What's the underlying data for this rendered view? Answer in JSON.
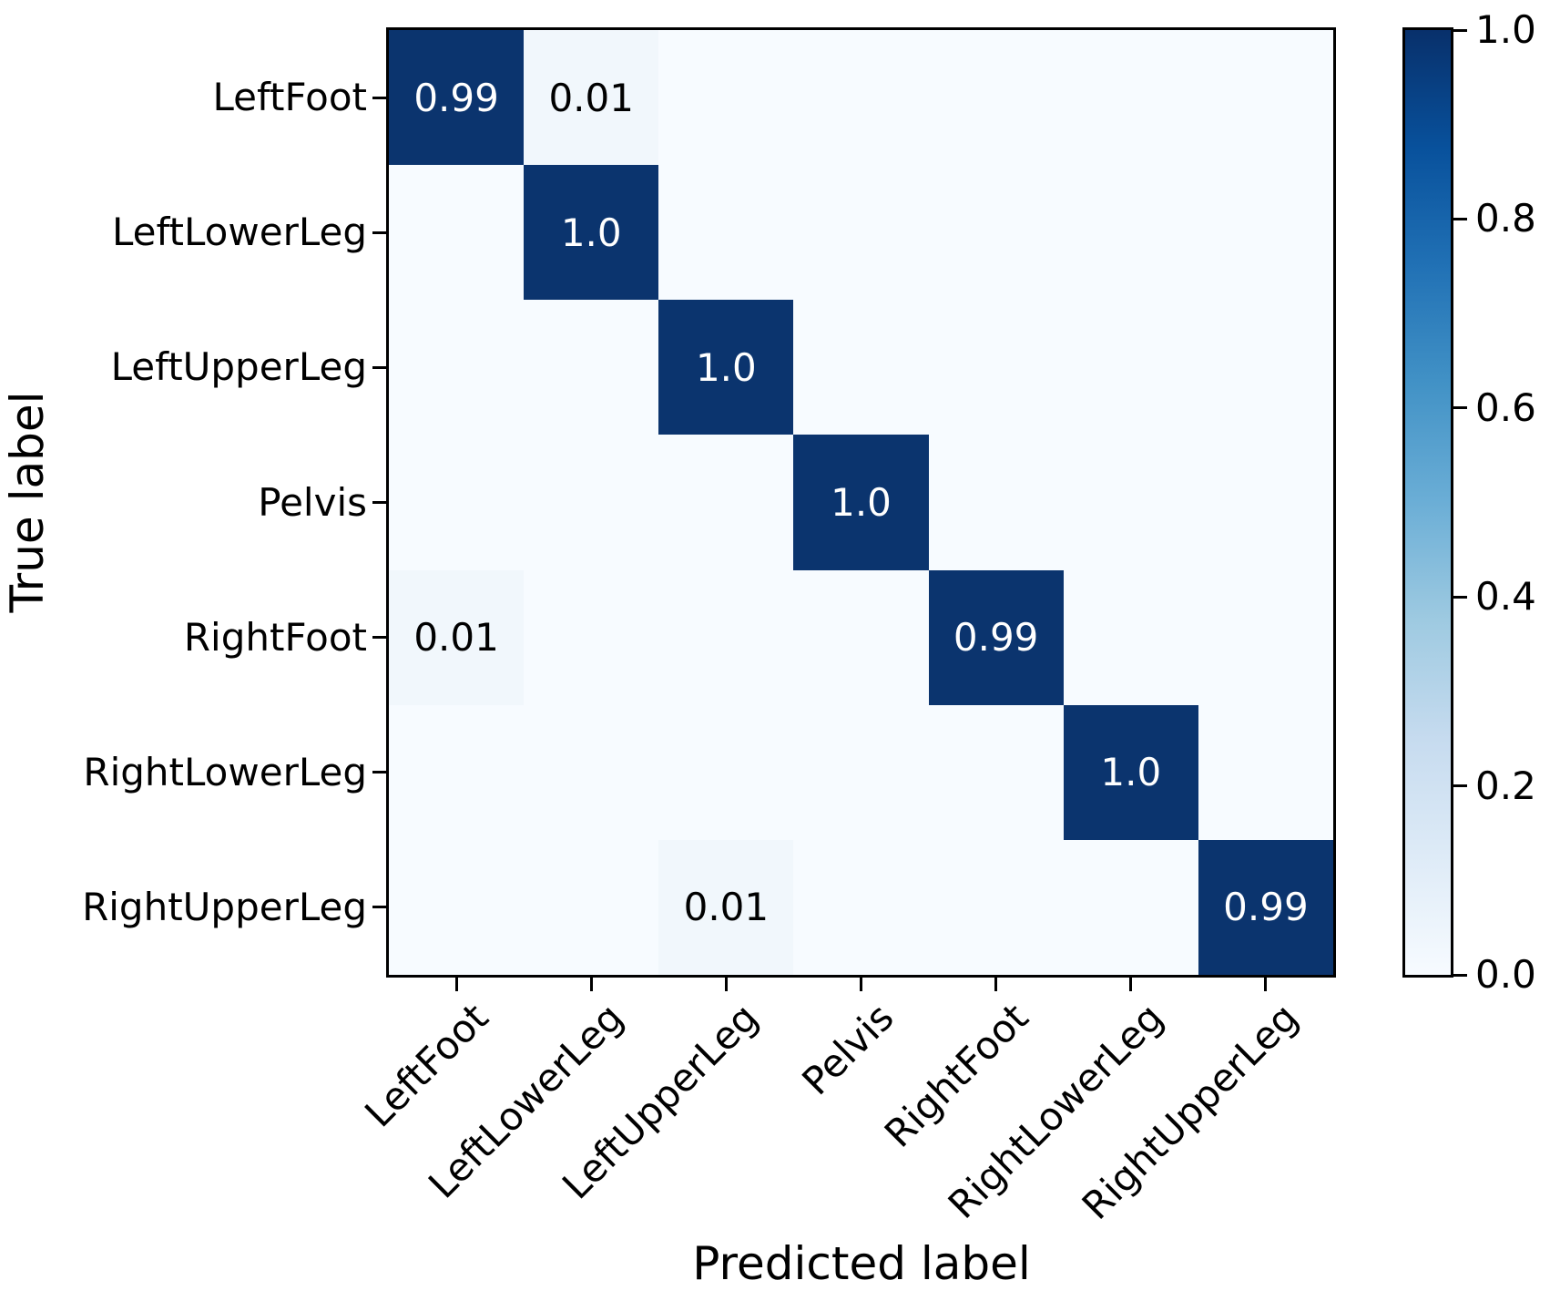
{
  "figure_title": "",
  "chart_data": {
    "type": "heatmap",
    "subtype": "confusion-matrix",
    "title": "",
    "xlabel": "Predicted label",
    "ylabel": "True label",
    "categories": [
      "LeftFoot",
      "LeftLowerLeg",
      "LeftUpperLeg",
      "Pelvis",
      "RightFoot",
      "RightLowerLeg",
      "RightUpperLeg"
    ],
    "matrix": [
      [
        0.99,
        0.01,
        0,
        0,
        0,
        0,
        0
      ],
      [
        0,
        1.0,
        0,
        0,
        0,
        0,
        0
      ],
      [
        0,
        0,
        1.0,
        0,
        0,
        0,
        0
      ],
      [
        0,
        0,
        0,
        1.0,
        0,
        0,
        0
      ],
      [
        0.01,
        0,
        0,
        0,
        0.99,
        0,
        0
      ],
      [
        0,
        0,
        0,
        0,
        0,
        1.0,
        0
      ],
      [
        0,
        0,
        0.01,
        0,
        0,
        0,
        0.99
      ]
    ],
    "cell_labels": [
      [
        "0.99",
        "0.01",
        "",
        "",
        "",
        "",
        ""
      ],
      [
        "",
        "1.0",
        "",
        "",
        "",
        "",
        ""
      ],
      [
        "",
        "",
        "1.0",
        "",
        "",
        "",
        ""
      ],
      [
        "",
        "",
        "",
        "1.0",
        "",
        "",
        ""
      ],
      [
        "0.01",
        "",
        "",
        "",
        "0.99",
        "",
        ""
      ],
      [
        "",
        "",
        "",
        "",
        "",
        "1.0",
        ""
      ],
      [
        "",
        "",
        "0.01",
        "",
        "",
        "",
        "0.99"
      ]
    ],
    "colorbar": {
      "ticks": [
        "1.0",
        "0.8",
        "0.6",
        "0.4",
        "0.2",
        "0.0"
      ],
      "range": [
        0,
        1
      ],
      "colormap": "Blues",
      "position": "right",
      "gradient_stops_bottom_to_top": [
        "#f7fbff",
        "#deebf7",
        "#c6dbef",
        "#9ecae1",
        "#6baed6",
        "#4292c6",
        "#2171b5",
        "#08519c",
        "#08306b"
      ]
    },
    "colors": {
      "cmap_high": "#0b346e",
      "cmap_low": "#f7fbff",
      "cmap_low_tint": "#f1f7fc",
      "text_on_dark": "#ffffff",
      "text_on_light": "#000000",
      "spine": "#000000"
    },
    "grid": false,
    "axis_ranges": {
      "x": [
        0,
        7
      ],
      "y": [
        0,
        7
      ]
    }
  }
}
